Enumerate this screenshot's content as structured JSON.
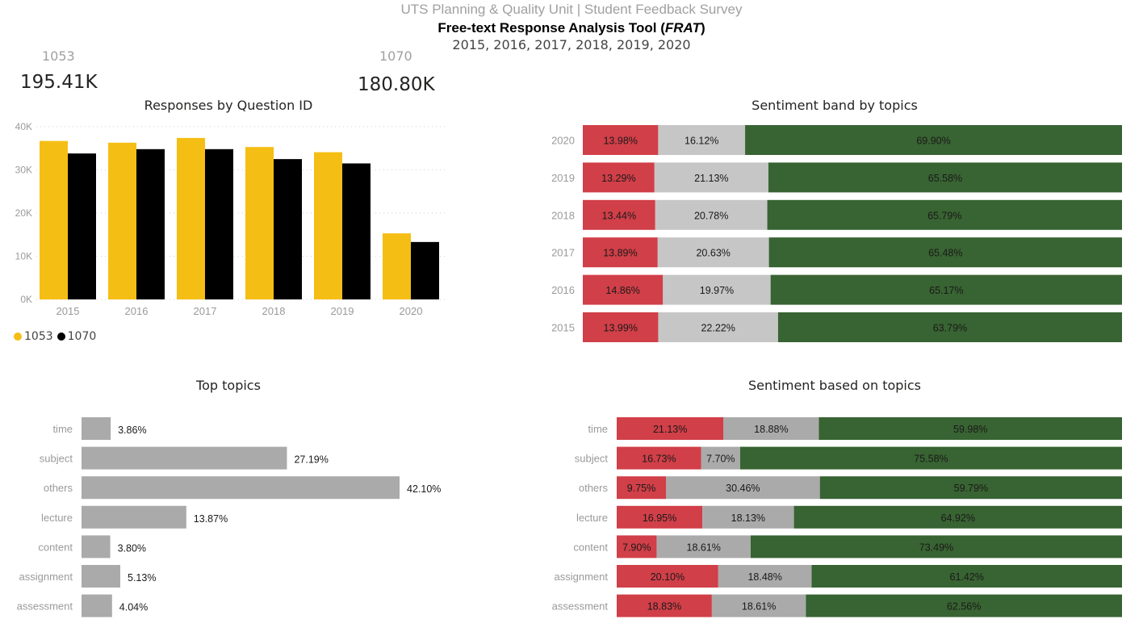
{
  "header": {
    "supertitle": "UTS Planning & Quality Unit | Student Feedback Survey",
    "title_prefix": "Free-text Response Analysis Tool (",
    "title_italic": "FRAT",
    "title_suffix": ")",
    "years": "2015, 2016, 2017, 2018, 2019, 2020"
  },
  "kpis": [
    {
      "label": "1053",
      "value": "195.41K"
    },
    {
      "label": "1070",
      "value": "180.80K"
    }
  ],
  "colors": {
    "q1053": "#F5BE14",
    "q1070": "#000000",
    "negative": "#D13F48",
    "neutral_band": "#C6C6C6",
    "neutral_topic": "#AAAAAA",
    "positive": "#386332",
    "topic_bar": "#AAAAAA"
  },
  "chart_data": [
    {
      "type": "bar",
      "title": "Responses by Question ID",
      "categories": [
        "2015",
        "2016",
        "2017",
        "2018",
        "2019",
        "2020"
      ],
      "series": [
        {
          "name": "1053",
          "values": [
            36700,
            36300,
            37400,
            35300,
            34100,
            15300
          ]
        },
        {
          "name": "1070",
          "values": [
            33800,
            34800,
            34800,
            32500,
            31500,
            13300
          ]
        }
      ],
      "yticks": [
        "0K",
        "10K",
        "20K",
        "30K",
        "40K"
      ],
      "ylim": [
        0,
        40000
      ],
      "grid": true,
      "legend": "bottom-left"
    },
    {
      "type": "bar",
      "title": "Sentiment band by topics",
      "orientation": "horizontal-stacked",
      "categories": [
        "2020",
        "2019",
        "2018",
        "2017",
        "2016",
        "2015"
      ],
      "series": [
        {
          "values": [
            13.98,
            13.29,
            13.44,
            13.89,
            14.86,
            13.99
          ],
          "labels": [
            "13.98%",
            "13.29%",
            "13.44%",
            "13.89%",
            "14.86%",
            "13.99%"
          ]
        },
        {
          "values": [
            16.12,
            21.13,
            20.78,
            20.63,
            19.97,
            22.22
          ],
          "labels": [
            "16.12%",
            "21.13%",
            "20.78%",
            "20.63%",
            "19.97%",
            "22.22%"
          ]
        },
        {
          "values": [
            69.9,
            65.58,
            65.79,
            65.48,
            65.17,
            63.79
          ],
          "labels": [
            "69.90%",
            "65.58%",
            "65.79%",
            "65.48%",
            "65.17%",
            "63.79%"
          ]
        }
      ]
    },
    {
      "type": "bar",
      "title": "Top topics",
      "orientation": "horizontal",
      "categories": [
        "time",
        "subject",
        "others",
        "lecture",
        "content",
        "assignment",
        "assessment"
      ],
      "values": [
        3.86,
        27.19,
        42.1,
        13.87,
        3.8,
        5.13,
        4.04
      ],
      "labels": [
        "3.86%",
        "27.19%",
        "42.10%",
        "13.87%",
        "3.80%",
        "5.13%",
        "4.04%"
      ]
    },
    {
      "type": "bar",
      "title": "Sentiment based on topics",
      "orientation": "horizontal-stacked",
      "categories": [
        "time",
        "subject",
        "others",
        "lecture",
        "content",
        "assignment",
        "assessment"
      ],
      "series": [
        {
          "values": [
            21.13,
            16.73,
            9.75,
            16.95,
            7.9,
            20.1,
            18.83
          ],
          "labels": [
            "21.13%",
            "16.73%",
            "9.75%",
            "16.95%",
            "7.90%",
            "20.10%",
            "18.83%"
          ]
        },
        {
          "values": [
            18.88,
            7.7,
            30.46,
            18.13,
            18.61,
            18.48,
            18.61
          ],
          "labels": [
            "18.88%",
            "7.70%",
            "30.46%",
            "18.13%",
            "18.61%",
            "18.48%",
            "18.61%"
          ]
        },
        {
          "values": [
            59.98,
            75.58,
            59.79,
            64.92,
            73.49,
            61.42,
            62.56
          ],
          "labels": [
            "59.98%",
            "75.58%",
            "59.79%",
            "64.92%",
            "73.49%",
            "61.42%",
            "62.56%"
          ]
        }
      ]
    }
  ]
}
